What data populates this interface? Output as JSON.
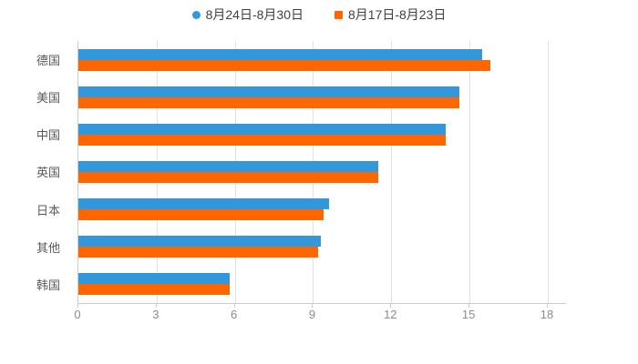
{
  "chart_data": {
    "type": "bar",
    "orientation": "horizontal",
    "title": "",
    "xlabel": "",
    "ylabel": "",
    "categories": [
      "德国",
      "美国",
      "中国",
      "英国",
      "日本",
      "其他",
      "韩国"
    ],
    "series": [
      {
        "name": "8月24日-8月30日",
        "color": "#3398db",
        "marker": "circle",
        "values": [
          15.5,
          14.6,
          14.1,
          11.5,
          9.6,
          9.3,
          5.8
        ]
      },
      {
        "name": "8月17日-8月23日",
        "color": "#ff6600",
        "marker": "square",
        "values": [
          15.8,
          14.6,
          14.1,
          11.5,
          9.4,
          9.2,
          5.8
        ]
      }
    ],
    "x_ticks": [
      0,
      3,
      6,
      9,
      12,
      15,
      18
    ],
    "xlim": [
      0,
      18.7
    ],
    "grid": true,
    "legend_position": "top"
  },
  "colors": {
    "background": "#ffffff",
    "series_blue": "#3398db",
    "series_orange": "#ff6600",
    "gridline": "#e2e2e2",
    "axis_line": "#cccccc",
    "category_label": "#595959",
    "tick_label": "#8c8c8c",
    "legend_text": "#404040"
  }
}
